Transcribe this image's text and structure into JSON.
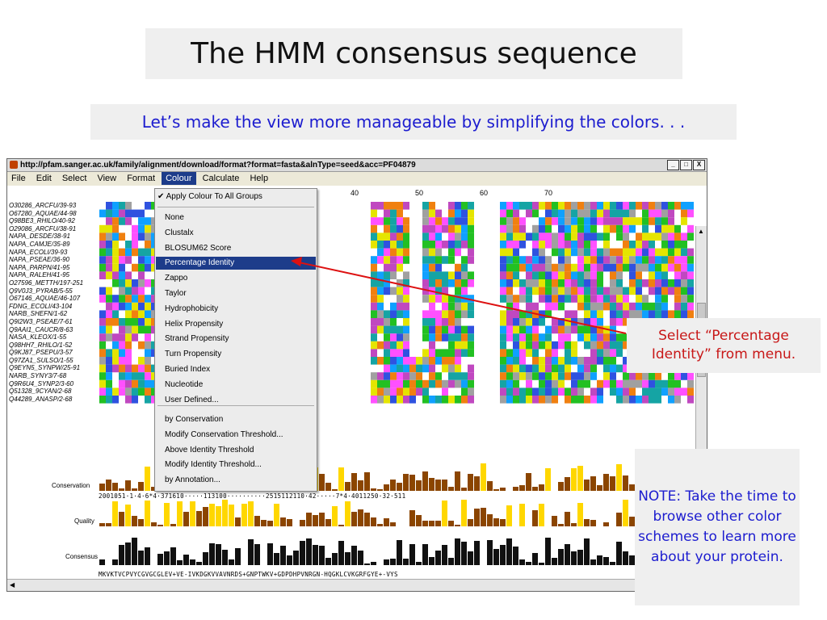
{
  "slide": {
    "title": "The HMM consensus sequence",
    "subtitle": "Let’s make the view more manageable by simplifying the colors. . .",
    "callout_select": "Select “Percentage Identity” from menu.",
    "callout_note": "NOTE: Take the time to browse other color schemes to learn more about your protein."
  },
  "window": {
    "title": "http://pfam.sanger.ac.uk/family/alignment/download/format?format=fasta&alnType=seed&acc=PF04879",
    "buttons": [
      "_",
      "□",
      "X"
    ]
  },
  "menubar": [
    "File",
    "Edit",
    "Select",
    "View",
    "Format",
    "Colour",
    "Calculate",
    "Help"
  ],
  "active_menu": "Colour",
  "colour_menu": {
    "check_item": "Apply Colour To All Groups",
    "items": [
      "None",
      "Clustalx",
      "BLOSUM62 Score",
      "Percentage Identity",
      "Zappo",
      "Taylor",
      "Hydrophobicity",
      "Helix Propensity",
      "Strand Propensity",
      "Turn Propensity",
      "Buried Index",
      "Nucleotide",
      "User Defined..."
    ],
    "items2": [
      "by Conservation",
      "Modify Conservation Threshold...",
      "Above Identity Threshold",
      "Modify Identity Threshold...",
      "by Annotation..."
    ],
    "selected": "Percentage Identity"
  },
  "ruler": [
    "40",
    "50",
    "60",
    "70"
  ],
  "sequences": [
    "O30286_ARCFU/39-93",
    "O67280_AQUAE/44-98",
    "Q98BE3_RHILO/40-92",
    "O29086_ARCFU/38-91",
    "NAPA_DESDE/38-91",
    "NAPA_CAMJE/35-89",
    "NAPA_ECOLI/39-93",
    "NAPA_PSEAE/36-90",
    "NAPA_PARPN/41-95",
    "NAPA_RALEH/41-95",
    "O27596_METTH/197-251",
    "Q9V0J3_PYRAB/5-55",
    "O67146_AQUAE/46-107",
    "FDNG_ECOLI/43-104",
    "NARB_SHEFN/1-62",
    "Q9I2W3_PSEAE/7-61",
    "Q9AAI1_CAUCR/8-63",
    "NASA_KLEOX/1-55",
    "Q98HH7_RHILO/1-52",
    "Q9KJ87_PSEPU/3-57",
    "Q97ZA1_SULSO/1-55",
    "Q9EYN5_SYNPW/25-91",
    "NARB_SYNY3/7-68",
    "Q9R6U4_SYNP2/3-60",
    "Q51328_9CYAN/2-68",
    "Q44289_ANASP/2-68"
  ],
  "annotations": {
    "conservation": "Conservation",
    "quality": "Quality",
    "consensus": "Consensus",
    "conservation_digits": "2001051·1·4·6*4·371610·····113100··········2515112110·42·····7*4·4011250·32·511",
    "consensus_seq": "MKVKTVCPVYCGVGCGLEV+VE-IVKDGKVVAVNRDS+GNPTWKV+GDPDHPVNRGN-HQGKLCVKGRFGYE+-VYS"
  },
  "colors": {
    "percent_identity_dark": "#6a6ad4",
    "clustal_red": "#e52222",
    "arrow": "#dd1111"
  }
}
